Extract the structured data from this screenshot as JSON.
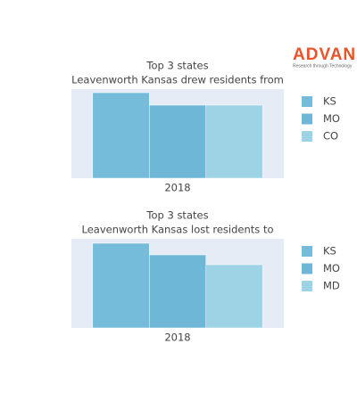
{
  "logo": {
    "name": "ADVAN",
    "tagline": "Research through Technology"
  },
  "chart_data": [
    {
      "type": "bar",
      "title": [
        "Top 3 states",
        "Leavenworth Kansas drew residents from"
      ],
      "categories": [
        "2018"
      ],
      "ylim": [
        0,
        100
      ],
      "series": [
        {
          "name": "KS",
          "color": "#74bcd9",
          "values": [
            96
          ]
        },
        {
          "name": "MO",
          "color": "#6fb7d6",
          "values": [
            82
          ]
        },
        {
          "name": "CO",
          "color": "#9ed2e5",
          "values": [
            82
          ]
        }
      ]
    },
    {
      "type": "bar",
      "title": [
        "Top 3 states",
        "Leavenworth Kansas lost residents to"
      ],
      "categories": [
        "2018"
      ],
      "ylim": [
        0,
        100
      ],
      "series": [
        {
          "name": "KS",
          "color": "#74bcd9",
          "values": [
            95
          ]
        },
        {
          "name": "MO",
          "color": "#6fb7d6",
          "values": [
            82
          ]
        },
        {
          "name": "MD",
          "color": "#9ed2e5",
          "values": [
            71
          ]
        }
      ]
    }
  ]
}
